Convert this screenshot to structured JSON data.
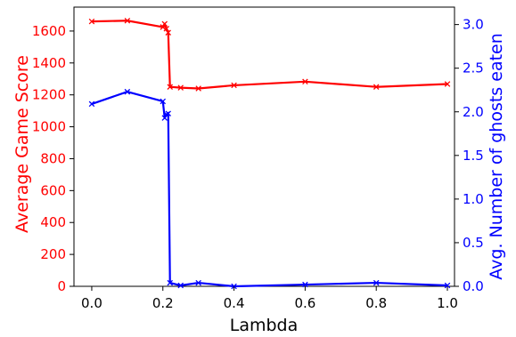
{
  "chart_data": {
    "type": "line",
    "xlabel": "Lambda",
    "ylabel_left": "Average Game Score",
    "ylabel_right": "Avg. Number of ghosts eaten",
    "xlim": [
      -0.05,
      1.02
    ],
    "ylim_left": [
      0,
      1750
    ],
    "ylim_right": [
      0,
      3.2
    ],
    "x_ticks": [
      0.0,
      0.2,
      0.4,
      0.6,
      0.8,
      1.0
    ],
    "x_tick_labels": [
      "0.0",
      "0.2",
      "0.4",
      "0.6",
      "0.8",
      "1.0"
    ],
    "y_left_ticks": [
      0,
      200,
      400,
      600,
      800,
      1000,
      1200,
      1400,
      1600
    ],
    "y_left_tick_labels": [
      "0",
      "200",
      "400",
      "600",
      "800",
      "1000",
      "1200",
      "1400",
      "1600"
    ],
    "y_right_ticks": [
      0.0,
      0.5,
      1.0,
      1.5,
      2.0,
      2.5,
      3.0
    ],
    "y_right_tick_labels": [
      "0.0",
      "0.5",
      "1.0",
      "1.5",
      "2.0",
      "2.5",
      "3.0"
    ],
    "grid": false,
    "series": [
      {
        "axis": "left",
        "color": "#ff0000",
        "marker": "x",
        "x": [
          0.0,
          0.1,
          0.2,
          0.205,
          0.21,
          0.215,
          0.22,
          0.25,
          0.3,
          0.4,
          0.6,
          0.8,
          1.0
        ],
        "values": [
          1660,
          1665,
          1625,
          1645,
          1615,
          1590,
          1250,
          1245,
          1240,
          1260,
          1283,
          1250,
          1268
        ]
      },
      {
        "axis": "right",
        "color": "#0000ff",
        "marker": "x",
        "x": [
          0.0,
          0.1,
          0.2,
          0.205,
          0.21,
          0.215,
          0.22,
          0.25,
          0.3,
          0.4,
          0.6,
          0.8,
          1.0
        ],
        "values": [
          2.09,
          2.23,
          2.12,
          1.93,
          1.97,
          1.98,
          0.04,
          0.01,
          0.04,
          0.0,
          0.02,
          0.04,
          0.01
        ]
      }
    ],
    "colors": {
      "left_axis": "#ff0000",
      "right_axis": "#0000ff",
      "frame": "#000000"
    }
  }
}
